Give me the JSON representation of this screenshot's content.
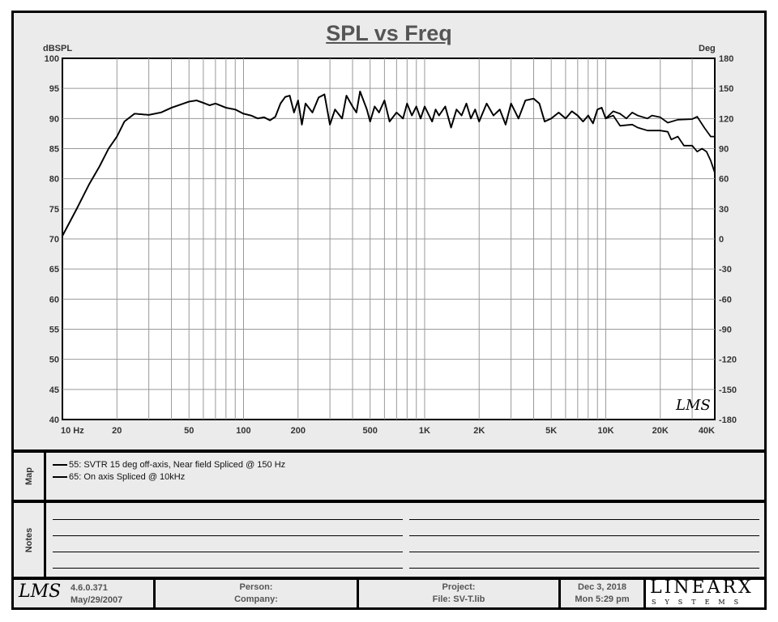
{
  "chart_data": {
    "type": "line",
    "title": "SPL vs Freq",
    "ylabel": "dBSPL",
    "y2label": "Deg",
    "xscale": "log",
    "xlim": [
      10,
      40000
    ],
    "ylim": [
      40,
      100
    ],
    "y2lim": [
      -180,
      180
    ],
    "xticks": [
      10,
      20,
      50,
      100,
      200,
      500,
      1000,
      2000,
      5000,
      10000,
      20000,
      40000
    ],
    "xtick_labels": [
      "10  Hz",
      "20",
      "50",
      "100",
      "200",
      "500",
      "1K",
      "2K",
      "5K",
      "10K",
      "20K",
      "40K"
    ],
    "yticks": [
      100,
      95,
      90,
      85,
      80,
      75,
      70,
      65,
      60,
      55,
      50,
      45,
      40
    ],
    "y2ticks": [
      180,
      150,
      120,
      90,
      60,
      30,
      0,
      -30,
      -60,
      -90,
      -120,
      -150,
      -180
    ],
    "grid": true,
    "series": [
      {
        "name": "55: SVTR 15 deg off-axis, Near field Spliced @ 150 Hz",
        "x": [
          10,
          12,
          14,
          16,
          18,
          20,
          22,
          25,
          30,
          35,
          40,
          50,
          55,
          60,
          65,
          70,
          80,
          90,
          100,
          110,
          120,
          130,
          140,
          150,
          160,
          170,
          180,
          190,
          200,
          210,
          220,
          240,
          260,
          280,
          300,
          320,
          350,
          370,
          400,
          420,
          440,
          480,
          500,
          530,
          560,
          600,
          640,
          700,
          760,
          800,
          850,
          900,
          950,
          1000,
          1100,
          1150,
          1200,
          1300,
          1400,
          1500,
          1600,
          1700,
          1800,
          1900,
          2000,
          2200,
          2400,
          2600,
          2800,
          3000,
          3300,
          3600,
          4000,
          4300,
          4600,
          5000,
          5500,
          6000,
          6500,
          7000,
          7500,
          8000,
          8500,
          9000,
          9500,
          10000,
          11000,
          12000,
          13000,
          14000,
          15000,
          17000,
          18000,
          20000,
          22000,
          25000,
          30000,
          32000,
          35000,
          38000,
          40000
        ],
        "y": [
          70.5,
          75,
          79,
          82,
          85,
          87,
          89.5,
          90.8,
          90.6,
          91,
          91.8,
          92.8,
          93,
          92.6,
          92.2,
          92.5,
          91.8,
          91.5,
          90.8,
          90.5,
          90,
          90.2,
          89.7,
          90.3,
          92.5,
          93.6,
          93.8,
          91,
          93,
          89,
          92.5,
          91,
          93.5,
          94,
          89,
          91.5,
          90,
          93.8,
          92,
          91,
          94.5,
          91.5,
          89.5,
          92,
          91,
          93,
          89.5,
          91,
          90,
          92.5,
          90.5,
          92,
          90,
          92,
          89.5,
          91.5,
          90.5,
          92,
          88.5,
          91.5,
          90.5,
          92.5,
          90,
          91.5,
          89.5,
          92.5,
          90.5,
          91.5,
          89,
          92.5,
          90,
          93,
          93.3,
          92.5,
          89.5,
          90,
          91,
          90,
          91.2,
          90.5,
          89.5,
          90.5,
          89.2,
          91.5,
          91.8,
          90,
          91.2,
          90.8,
          90,
          91,
          90.5,
          90,
          90.5,
          90.2,
          89.3,
          89.8,
          89.9,
          90.3,
          88.5,
          87,
          87
        ]
      },
      {
        "name": "65: On axis Spliced @  10kHz",
        "x": [
          10,
          12,
          14,
          16,
          18,
          20,
          22,
          25,
          30,
          35,
          40,
          50,
          55,
          60,
          65,
          70,
          80,
          90,
          100,
          110,
          120,
          130,
          140,
          150,
          160,
          170,
          180,
          190,
          200,
          210,
          220,
          240,
          260,
          280,
          300,
          320,
          350,
          370,
          400,
          420,
          440,
          480,
          500,
          530,
          560,
          600,
          640,
          700,
          760,
          800,
          850,
          900,
          950,
          1000,
          1100,
          1150,
          1200,
          1300,
          1400,
          1500,
          1600,
          1700,
          1800,
          1900,
          2000,
          2200,
          2400,
          2600,
          2800,
          3000,
          3300,
          3600,
          4000,
          4300,
          4600,
          5000,
          5500,
          6000,
          6500,
          7000,
          7500,
          8000,
          8500,
          9000,
          9500,
          10000,
          11000,
          12000,
          14000,
          15000,
          17000,
          20000,
          22000,
          23000,
          25000,
          27000,
          30000,
          32000,
          34000,
          36000,
          38000,
          40000
        ],
        "y": [
          70.5,
          75,
          79,
          82,
          85,
          87,
          89.5,
          90.8,
          90.6,
          91,
          91.8,
          92.8,
          93,
          92.6,
          92.2,
          92.5,
          91.8,
          91.5,
          90.8,
          90.5,
          90,
          90.2,
          89.7,
          90.3,
          92.5,
          93.6,
          93.8,
          91,
          93,
          89,
          92.5,
          91,
          93.5,
          94,
          89,
          91.5,
          90,
          93.8,
          92,
          91,
          94.5,
          91.5,
          89.5,
          92,
          91,
          93,
          89.5,
          91,
          90,
          92.5,
          90.5,
          92,
          90,
          92,
          89.5,
          91.5,
          90.5,
          92,
          88.5,
          91.5,
          90.5,
          92.5,
          90,
          91.5,
          89.5,
          92.5,
          90.5,
          91.5,
          89,
          92.5,
          90,
          93,
          93.3,
          92.5,
          89.5,
          90,
          91,
          90,
          91.2,
          90.5,
          89.5,
          90.5,
          89.2,
          91.5,
          91.8,
          90,
          90.5,
          88.8,
          89,
          88.5,
          88,
          88,
          87.8,
          86.5,
          87,
          85.5,
          85.5,
          84.5,
          85,
          84.5,
          83,
          81
        ]
      }
    ]
  },
  "map": {
    "label": "Map",
    "entries": [
      "55: SVTR 15 deg off-axis, Near field Spliced @ 150 Hz",
      "65: On axis Spliced @  10kHz"
    ]
  },
  "notes": {
    "label": "Notes"
  },
  "footer": {
    "logo": "LMS",
    "version": "4.6.0.371",
    "build_date": "May/29/2007",
    "person": "Person:",
    "company": "Company:",
    "project": "Project:",
    "file": "File: SV-T.lib",
    "date": "Dec  3, 2018",
    "time": "Mon  5:29 pm",
    "brand": "LINEARX",
    "brand_sub": "SYSTEMS"
  },
  "watermark": "LMS"
}
